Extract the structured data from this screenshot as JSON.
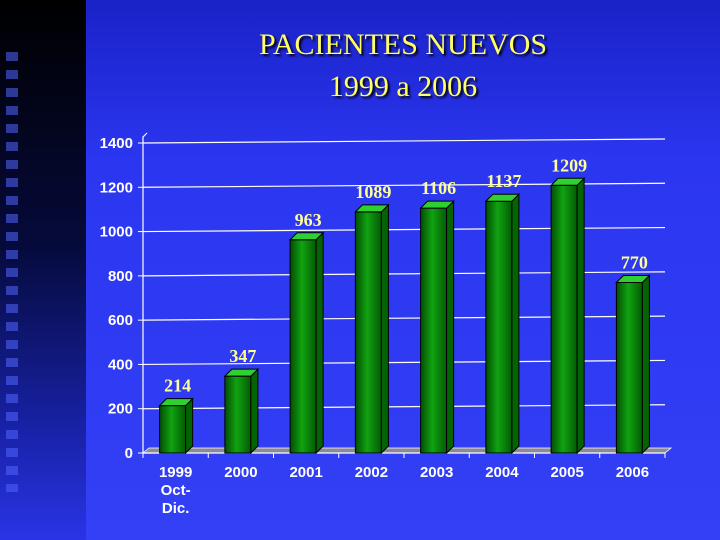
{
  "slide": {
    "title_line1": "PACIENTES NUEVOS",
    "title_line2": "1999 a 2006"
  },
  "colors": {
    "background": "#2b36f0",
    "title": "#ffff66",
    "bar": "#0a8a0a",
    "gridline": "#ffffff",
    "labels": "#ffffff",
    "data_labels": "#ffff99"
  },
  "chart_data": {
    "type": "bar",
    "title": "PACIENTES NUEVOS 1999 a 2006",
    "categories": [
      [
        "1999",
        "Oct-",
        "Dic."
      ],
      [
        "2000"
      ],
      [
        "2001"
      ],
      [
        "2002"
      ],
      [
        "2003"
      ],
      [
        "2004"
      ],
      [
        "2005"
      ],
      [
        "2006"
      ]
    ],
    "values": [
      214,
      347,
      963,
      1089,
      1106,
      1137,
      1209,
      770
    ],
    "data_labels": [
      "214",
      "347",
      "963",
      "1089",
      "1106",
      "1137",
      "1209",
      "770"
    ],
    "ylim": [
      0,
      1400
    ],
    "yticks": [
      "0",
      "200",
      "400",
      "600",
      "800",
      "1000",
      "1200",
      "1400"
    ],
    "grid": true,
    "legend": "none",
    "style": "3d-bar"
  }
}
